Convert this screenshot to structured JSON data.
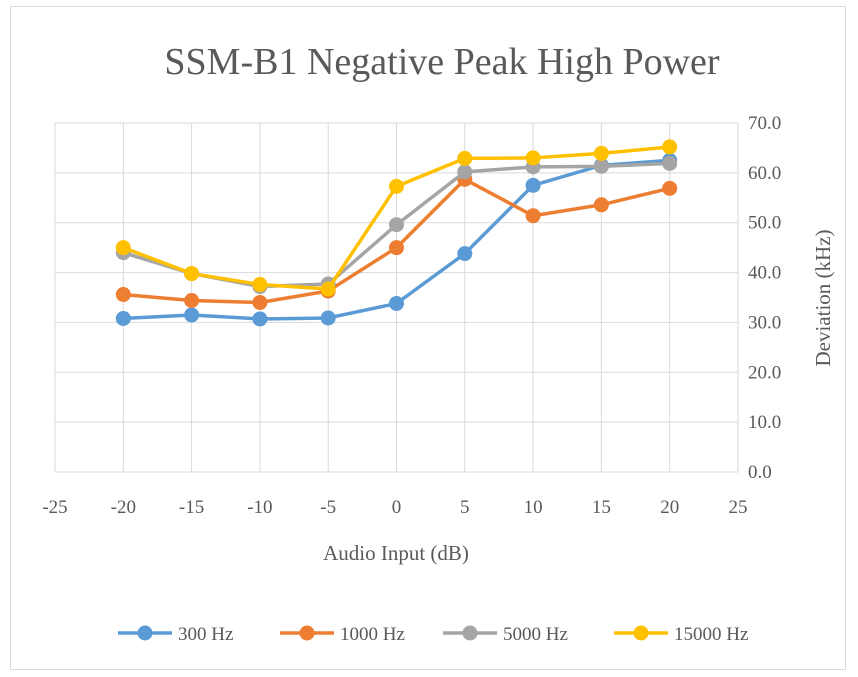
{
  "chart_data": {
    "type": "line",
    "title": "SSM-B1 Negative Peak High Power",
    "xlabel": "Audio Input (dB)",
    "ylabel": "Deviation (kHz)",
    "x_ticks": [
      "-25",
      "-20",
      "-15",
      "-10",
      "-5",
      "0",
      "5",
      "10",
      "15",
      "20",
      "25"
    ],
    "y_ticks": [
      "0.0",
      "10.0",
      "20.0",
      "30.0",
      "40.0",
      "50.0",
      "60.0",
      "70.0"
    ],
    "xlim": [
      -25,
      25
    ],
    "ylim": [
      0,
      70
    ],
    "y_axis_side": "right",
    "grid": true,
    "legend_position": "bottom",
    "x": [
      -20,
      -15,
      -10,
      -5,
      0,
      5,
      10,
      15,
      20
    ],
    "series": [
      {
        "name": "300 Hz",
        "color": "#5b9bd5",
        "values": [
          30.8,
          31.5,
          30.7,
          30.9,
          33.8,
          43.8,
          57.5,
          61.5,
          62.5
        ]
      },
      {
        "name": "1000 Hz",
        "color": "#ed7d31",
        "values": [
          35.6,
          34.4,
          34.0,
          36.3,
          45.0,
          58.7,
          51.4,
          53.6,
          56.9
        ]
      },
      {
        "name": "5000 Hz",
        "color": "#a5a5a5",
        "values": [
          44.0,
          39.8,
          37.2,
          37.7,
          49.6,
          60.2,
          61.2,
          61.3,
          61.9
        ]
      },
      {
        "name": "15000 Hz",
        "color": "#ffc000",
        "values": [
          45.0,
          39.8,
          37.6,
          36.7,
          57.3,
          62.9,
          63.0,
          63.9,
          65.2
        ]
      }
    ]
  }
}
